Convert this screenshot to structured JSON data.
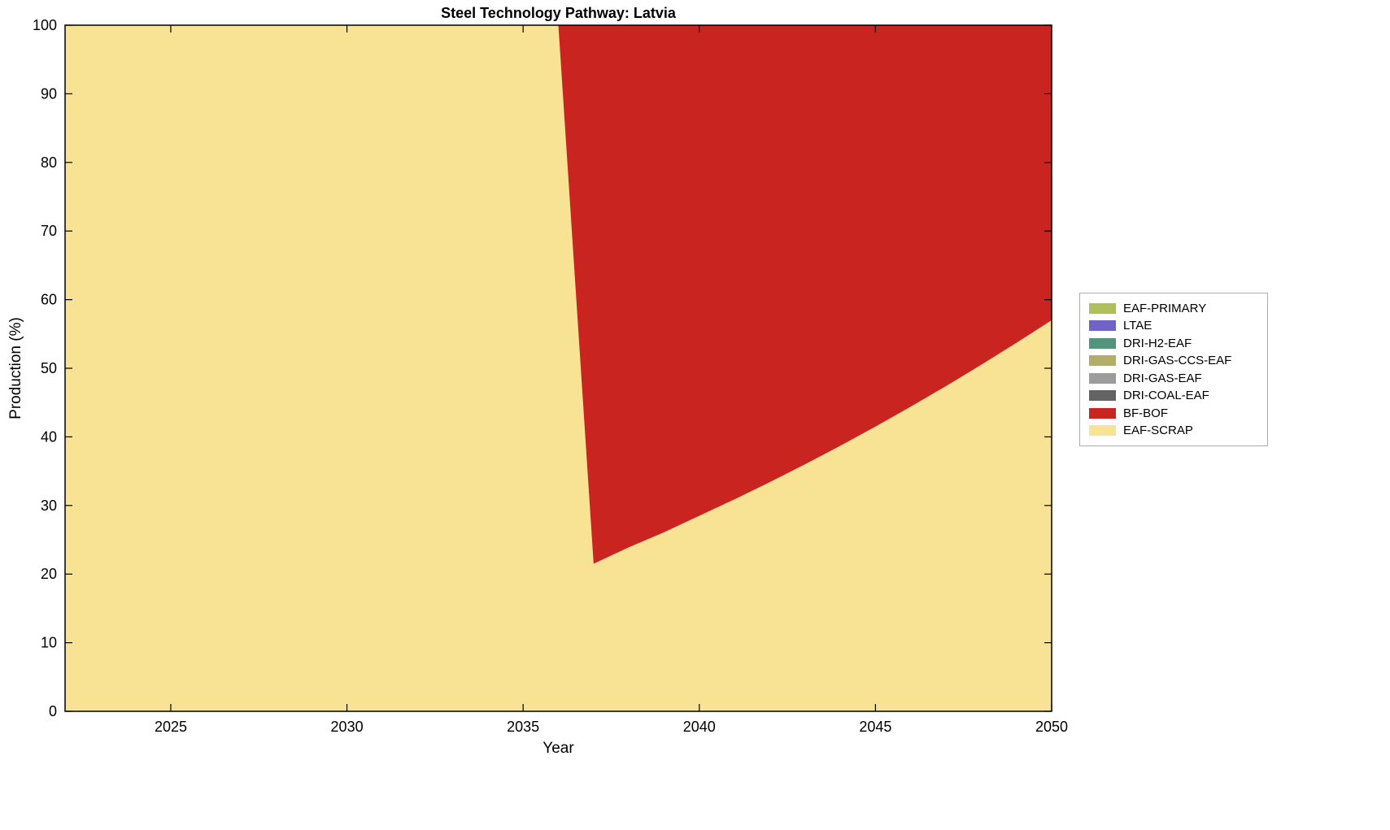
{
  "chart_data": {
    "type": "area",
    "stacked": true,
    "title": "Steel Technology Pathway: Latvia",
    "xlabel": "Year",
    "ylabel": "Production (%)",
    "xlim": [
      2022,
      2050
    ],
    "ylim": [
      0,
      100
    ],
    "x_ticks": [
      2025,
      2030,
      2035,
      2040,
      2045,
      2050
    ],
    "y_ticks": [
      0,
      10,
      20,
      30,
      40,
      50,
      60,
      70,
      80,
      90,
      100
    ],
    "grid": false,
    "legend_position": "right-outside",
    "x": [
      2022,
      2023,
      2024,
      2025,
      2026,
      2027,
      2028,
      2029,
      2030,
      2031,
      2032,
      2033,
      2034,
      2035,
      2036,
      2037,
      2038,
      2039,
      2040,
      2041,
      2042,
      2043,
      2044,
      2045,
      2046,
      2047,
      2048,
      2049,
      2050
    ],
    "series": [
      {
        "name": "EAF-SCRAP",
        "color": "#f8e294",
        "values": [
          100,
          100,
          100,
          100,
          100,
          100,
          100,
          100,
          100,
          100,
          100,
          100,
          100,
          100,
          100,
          21.5,
          23.9,
          26.1,
          28.5,
          30.9,
          33.4,
          36.0,
          38.7,
          41.5,
          44.4,
          47.4,
          50.5,
          53.7,
          57.0
        ]
      },
      {
        "name": "BF-BOF",
        "color": "#c9241f",
        "values": [
          0,
          0,
          0,
          0,
          0,
          0,
          0,
          0,
          0,
          0,
          0,
          0,
          0,
          0,
          0,
          78.5,
          76.1,
          73.9,
          71.5,
          69.1,
          66.6,
          64.0,
          61.3,
          58.5,
          55.6,
          52.6,
          49.5,
          46.3,
          43.0
        ]
      },
      {
        "name": "DRI-COAL-EAF",
        "color": "#636363",
        "values": 0
      },
      {
        "name": "DRI-GAS-EAF",
        "color": "#9c9c9c",
        "values": 0
      },
      {
        "name": "DRI-GAS-CCS-EAF",
        "color": "#b3ad68",
        "values": 0
      },
      {
        "name": "DRI-H2-EAF",
        "color": "#53957c",
        "values": 0
      },
      {
        "name": "LTAE",
        "color": "#6f63c4",
        "values": 0
      },
      {
        "name": "EAF-PRIMARY",
        "color": "#b1bf5a",
        "values": 0
      }
    ]
  },
  "legend": {
    "items": [
      {
        "label": "EAF-PRIMARY",
        "color": "#b1bf5a"
      },
      {
        "label": "LTAE",
        "color": "#6f63c4"
      },
      {
        "label": "DRI-H2-EAF",
        "color": "#53957c"
      },
      {
        "label": "DRI-GAS-CCS-EAF",
        "color": "#b3ad68"
      },
      {
        "label": "DRI-GAS-EAF",
        "color": "#9c9c9c"
      },
      {
        "label": "DRI-COAL-EAF",
        "color": "#636363"
      },
      {
        "label": "BF-BOF",
        "color": "#c9241f"
      },
      {
        "label": "EAF-SCRAP",
        "color": "#f8e294"
      }
    ]
  },
  "axis_color": "#000000"
}
